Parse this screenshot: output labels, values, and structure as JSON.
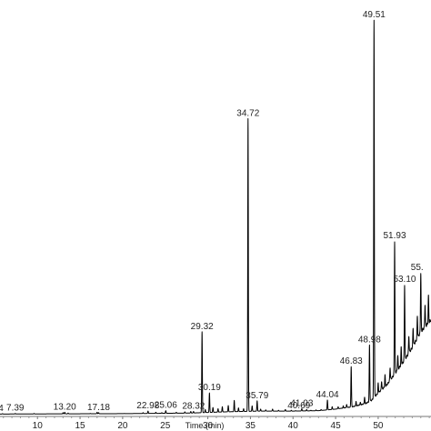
{
  "chart_data": {
    "type": "line",
    "title": "",
    "xlabel": "Time (min)",
    "ylabel": "",
    "xlim": [
      5.6,
      56.2
    ],
    "ylim": [
      0,
      100
    ],
    "grid": false,
    "x_ticks": [
      10,
      15,
      20,
      25,
      30,
      35,
      40,
      45,
      50
    ],
    "x_tick_labels": [
      "10",
      "15",
      "20",
      "25",
      "30",
      "35",
      "40",
      "45",
      "50"
    ],
    "line_color": "#000000",
    "peaks": [
      {
        "label": "4",
        "x": 5.9,
        "y": 0.2
      },
      {
        "label": "7.39",
        "x": 7.39,
        "y": 0.3
      },
      {
        "label": "13.20",
        "x": 13.2,
        "y": 0.6
      },
      {
        "label": "17.18",
        "x": 17.18,
        "y": 0.5
      },
      {
        "label": "22.98",
        "x": 22.98,
        "y": 0.9
      },
      {
        "label": "25.06",
        "x": 25.06,
        "y": 1.0
      },
      {
        "label": "28.32",
        "x": 28.32,
        "y": 0.8
      },
      {
        "label": "29.32",
        "x": 29.32,
        "y": 21.0
      },
      {
        "label": "30.19",
        "x": 30.19,
        "y": 5.5
      },
      {
        "label": "34.72",
        "x": 34.72,
        "y": 75.0
      },
      {
        "label": "35.79",
        "x": 35.79,
        "y": 3.5
      },
      {
        "label": "40.69",
        "x": 40.69,
        "y": 0.9
      },
      {
        "label": "41.03",
        "x": 41.03,
        "y": 1.5
      },
      {
        "label": "44.04",
        "x": 44.04,
        "y": 3.7
      },
      {
        "label": "46.83",
        "x": 46.83,
        "y": 12.2
      },
      {
        "label": "48.98",
        "x": 48.98,
        "y": 17.6
      },
      {
        "label": "49.51",
        "x": 49.51,
        "y": 100.0
      },
      {
        "label": "51.93",
        "x": 51.93,
        "y": 44.0
      },
      {
        "label": "53.10",
        "x": 53.1,
        "y": 33.0
      },
      {
        "label": "55.",
        "x": 55.0,
        "y": 36.0
      }
    ],
    "minor_peaks": [
      [
        5.9,
        0.2
      ],
      [
        9.6,
        0.3
      ],
      [
        11.2,
        0.2
      ],
      [
        13.0,
        0.5
      ],
      [
        13.6,
        0.4
      ],
      [
        16.2,
        0.3
      ],
      [
        17.0,
        0.6
      ],
      [
        20.2,
        0.3
      ],
      [
        22.4,
        0.5
      ],
      [
        23.9,
        0.6
      ],
      [
        24.6,
        0.5
      ],
      [
        26.3,
        0.6
      ],
      [
        27.3,
        0.7
      ],
      [
        28.0,
        0.8
      ],
      [
        29.7,
        1.3
      ],
      [
        30.6,
        1.8
      ],
      [
        31.2,
        1.5
      ],
      [
        31.7,
        2.0
      ],
      [
        32.4,
        2.3
      ],
      [
        33.1,
        3.6
      ],
      [
        33.6,
        1.7
      ],
      [
        34.2,
        1.5
      ],
      [
        35.2,
        2.2
      ],
      [
        36.2,
        1.4
      ],
      [
        36.8,
        1.2
      ],
      [
        37.6,
        1.4
      ],
      [
        38.3,
        1.1
      ],
      [
        39.1,
        1.3
      ],
      [
        39.8,
        1.1
      ],
      [
        40.3,
        1.0
      ],
      [
        41.6,
        1.3
      ],
      [
        42.1,
        1.1
      ],
      [
        42.7,
        1.2
      ],
      [
        43.3,
        1.3
      ],
      [
        44.6,
        2.0
      ],
      [
        45.3,
        2.0
      ],
      [
        45.9,
        2.2
      ],
      [
        46.3,
        2.6
      ],
      [
        47.4,
        3.3
      ],
      [
        47.9,
        3.1
      ],
      [
        48.4,
        4.4
      ],
      [
        50.0,
        8.0
      ],
      [
        50.4,
        8.5
      ],
      [
        50.8,
        10.0
      ],
      [
        51.4,
        12.0
      ],
      [
        52.3,
        15.0
      ],
      [
        52.7,
        17.0
      ],
      [
        53.6,
        20.0
      ],
      [
        54.1,
        22.0
      ],
      [
        54.6,
        25.0
      ],
      [
        55.5,
        28.0
      ],
      [
        55.9,
        30.0
      ]
    ],
    "baseline": [
      [
        5.6,
        0.15
      ],
      [
        20.0,
        0.25
      ],
      [
        28.0,
        0.4
      ],
      [
        32.0,
        0.7
      ],
      [
        36.0,
        0.9
      ],
      [
        40.0,
        0.9
      ],
      [
        43.0,
        1.0
      ],
      [
        45.0,
        1.4
      ],
      [
        47.0,
        2.0
      ],
      [
        48.5,
        2.8
      ],
      [
        49.2,
        3.6
      ],
      [
        50.0,
        5.5
      ],
      [
        51.0,
        7.5
      ],
      [
        52.0,
        10.5
      ],
      [
        53.0,
        13.5
      ],
      [
        54.0,
        17.0
      ],
      [
        55.0,
        21.0
      ],
      [
        56.2,
        24.0
      ]
    ]
  }
}
